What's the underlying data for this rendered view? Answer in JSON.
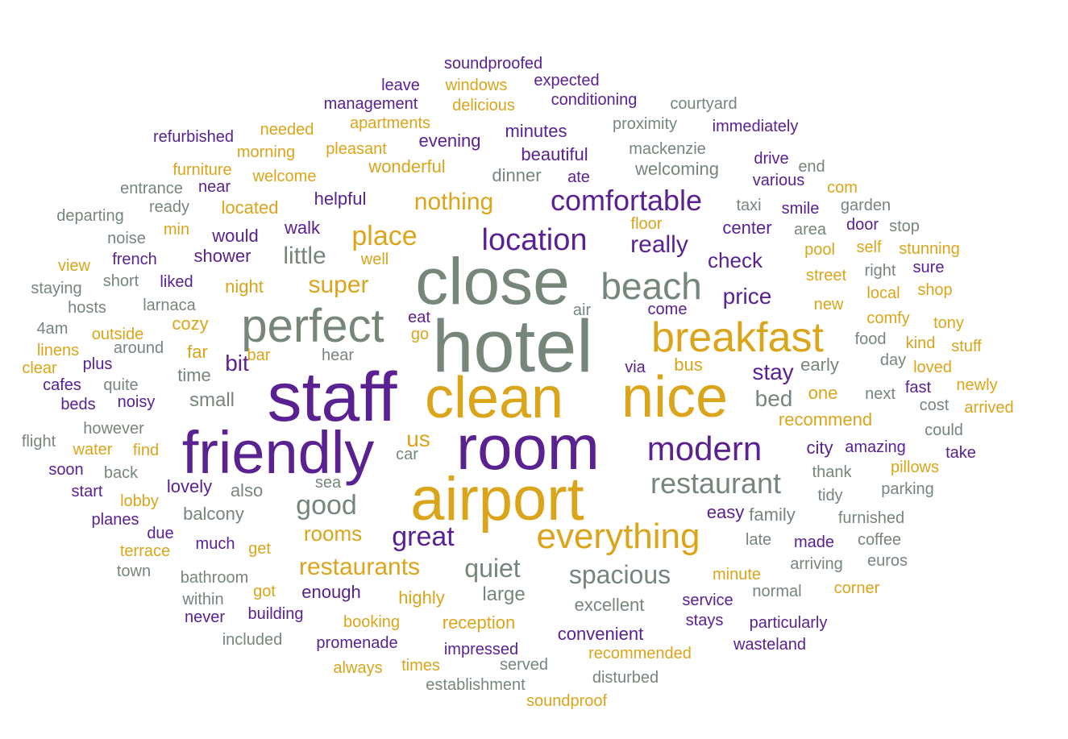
{
  "palette": {
    "purple": "#5a2191",
    "gold": "#dba51b",
    "sage": "#77867a"
  },
  "words": [
    {
      "text": "hotel",
      "weight": 100,
      "color": "sage"
    },
    {
      "text": "staff",
      "weight": 92,
      "color": "purple"
    },
    {
      "text": "close",
      "weight": 86,
      "color": "sage"
    },
    {
      "text": "clean",
      "weight": 78,
      "color": "gold"
    },
    {
      "text": "nice",
      "weight": 74,
      "color": "gold"
    },
    {
      "text": "room",
      "weight": 78,
      "color": "purple"
    },
    {
      "text": "airport",
      "weight": 80,
      "color": "gold"
    },
    {
      "text": "friendly",
      "weight": 74,
      "color": "purple"
    },
    {
      "text": "perfect",
      "weight": 58,
      "color": "sage"
    },
    {
      "text": "breakfast",
      "weight": 56,
      "color": "gold"
    },
    {
      "text": "beach",
      "weight": 48,
      "color": "sage"
    },
    {
      "text": "everything",
      "weight": 52,
      "color": "gold"
    },
    {
      "text": "modern",
      "weight": 48,
      "color": "purple"
    },
    {
      "text": "location",
      "weight": 42,
      "color": "purple"
    },
    {
      "text": "comfortable",
      "weight": 40,
      "color": "purple"
    },
    {
      "text": "restaurant",
      "weight": 40,
      "color": "sage"
    },
    {
      "text": "great",
      "weight": 38,
      "color": "purple"
    },
    {
      "text": "good",
      "weight": 38,
      "color": "sage"
    },
    {
      "text": "spacious",
      "weight": 36,
      "color": "sage"
    },
    {
      "text": "quiet",
      "weight": 36,
      "color": "sage"
    },
    {
      "text": "place",
      "weight": 36,
      "color": "gold"
    },
    {
      "text": "nothing",
      "weight": 34,
      "color": "gold"
    },
    {
      "text": "really",
      "weight": 34,
      "color": "purple"
    },
    {
      "text": "super",
      "weight": 34,
      "color": "gold"
    },
    {
      "text": "restaurants",
      "weight": 32,
      "color": "gold"
    },
    {
      "text": "rooms",
      "weight": 30,
      "color": "gold"
    },
    {
      "text": "little",
      "weight": 30,
      "color": "sage"
    },
    {
      "text": "price",
      "weight": 30,
      "color": "purple"
    },
    {
      "text": "check",
      "weight": 30,
      "color": "purple"
    },
    {
      "text": "stay",
      "weight": 30,
      "color": "purple"
    },
    {
      "text": "bed",
      "weight": 30,
      "color": "sage"
    },
    {
      "text": "bit",
      "weight": 30,
      "color": "purple"
    },
    {
      "text": "us",
      "weight": 30,
      "color": "gold"
    },
    {
      "text": "small",
      "weight": 28,
      "color": "sage"
    },
    {
      "text": "large",
      "weight": 28,
      "color": "sage"
    },
    {
      "text": "easy",
      "weight": 28,
      "color": "purple"
    },
    {
      "text": "bus",
      "weight": 28,
      "color": "gold"
    },
    {
      "text": "also",
      "weight": 28,
      "color": "sage"
    },
    {
      "text": "night",
      "weight": 26,
      "color": "gold"
    },
    {
      "text": "helpful",
      "weight": 26,
      "color": "purple"
    },
    {
      "text": "walk",
      "weight": 26,
      "color": "purple"
    },
    {
      "text": "wonderful",
      "weight": 26,
      "color": "gold"
    },
    {
      "text": "dinner",
      "weight": 26,
      "color": "sage"
    },
    {
      "text": "beautiful",
      "weight": 26,
      "color": "purple"
    },
    {
      "text": "recommend",
      "weight": 26,
      "color": "gold"
    },
    {
      "text": "highly",
      "weight": 26,
      "color": "gold"
    },
    {
      "text": "excellent",
      "weight": 26,
      "color": "sage"
    },
    {
      "text": "convenient",
      "weight": 24,
      "color": "purple"
    },
    {
      "text": "reception",
      "weight": 24,
      "color": "gold"
    },
    {
      "text": "enough",
      "weight": 24,
      "color": "purple"
    },
    {
      "text": "balcony",
      "weight": 24,
      "color": "sage"
    },
    {
      "text": "lovely",
      "weight": 24,
      "color": "purple"
    },
    {
      "text": "time",
      "weight": 24,
      "color": "sage"
    },
    {
      "text": "far",
      "weight": 24,
      "color": "gold"
    },
    {
      "text": "cozy",
      "weight": 22,
      "color": "gold"
    },
    {
      "text": "minute",
      "weight": 22,
      "color": "gold"
    },
    {
      "text": "service",
      "weight": 22,
      "color": "purple"
    },
    {
      "text": "impressed",
      "weight": 22,
      "color": "purple"
    },
    {
      "text": "recommended",
      "weight": 22,
      "color": "gold"
    },
    {
      "text": "welcoming",
      "weight": 22,
      "color": "sage"
    },
    {
      "text": "minutes",
      "weight": 22,
      "color": "purple"
    },
    {
      "text": "evening",
      "weight": 22,
      "color": "purple"
    },
    {
      "text": "center",
      "weight": 22,
      "color": "purple"
    },
    {
      "text": "shower",
      "weight": 22,
      "color": "purple"
    },
    {
      "text": "would",
      "weight": 22,
      "color": "purple"
    },
    {
      "text": "located",
      "weight": 22,
      "color": "gold"
    },
    {
      "text": "family",
      "weight": 22,
      "color": "sage"
    },
    {
      "text": "early",
      "weight": 22,
      "color": "sage"
    },
    {
      "text": "one",
      "weight": 22,
      "color": "gold"
    },
    {
      "text": "city",
      "weight": 22,
      "color": "purple"
    },
    {
      "text": "amazing",
      "weight": 22,
      "color": "purple"
    },
    {
      "text": "thank",
      "weight": 22,
      "color": "sage"
    },
    {
      "text": "street",
      "weight": 22,
      "color": "gold"
    },
    {
      "text": "pool",
      "weight": 22,
      "color": "gold"
    },
    {
      "text": "new",
      "weight": 22,
      "color": "gold"
    },
    {
      "text": "come",
      "weight": 20,
      "color": "purple"
    },
    {
      "text": "hear",
      "weight": 20,
      "color": "sage"
    },
    {
      "text": "around",
      "weight": 20,
      "color": "sage"
    },
    {
      "text": "noisy",
      "weight": 20,
      "color": "purple"
    },
    {
      "text": "however",
      "weight": 20,
      "color": "sage"
    },
    {
      "text": "much",
      "weight": 20,
      "color": "purple"
    },
    {
      "text": "get",
      "weight": 20,
      "color": "gold"
    },
    {
      "text": "bathroom",
      "weight": 20,
      "color": "sage"
    },
    {
      "text": "building",
      "weight": 20,
      "color": "purple"
    },
    {
      "text": "booking",
      "weight": 20,
      "color": "gold"
    },
    {
      "text": "promenade",
      "weight": 20,
      "color": "purple"
    },
    {
      "text": "stays",
      "weight": 20,
      "color": "purple"
    },
    {
      "text": "particularly",
      "weight": 20,
      "color": "purple"
    },
    {
      "text": "wasteland",
      "weight": 20,
      "color": "purple"
    },
    {
      "text": "served",
      "weight": 20,
      "color": "sage"
    },
    {
      "text": "times",
      "weight": 20,
      "color": "gold"
    },
    {
      "text": "always",
      "weight": 20,
      "color": "gold"
    },
    {
      "text": "establishment",
      "weight": 20,
      "color": "sage"
    },
    {
      "text": "disturbed",
      "weight": 20,
      "color": "sage"
    },
    {
      "text": "soundproof",
      "weight": 20,
      "color": "gold"
    },
    {
      "text": "made",
      "weight": 20,
      "color": "purple"
    },
    {
      "text": "late",
      "weight": 20,
      "color": "sage"
    },
    {
      "text": "arriving",
      "weight": 20,
      "color": "sage"
    },
    {
      "text": "normal",
      "weight": 20,
      "color": "sage"
    },
    {
      "text": "corner",
      "weight": 20,
      "color": "gold"
    },
    {
      "text": "coffee",
      "weight": 20,
      "color": "sage"
    },
    {
      "text": "euros",
      "weight": 20,
      "color": "sage"
    },
    {
      "text": "furnished",
      "weight": 20,
      "color": "sage"
    },
    {
      "text": "parking",
      "weight": 20,
      "color": "sage"
    },
    {
      "text": "tidy",
      "weight": 20,
      "color": "sage"
    },
    {
      "text": "pillows",
      "weight": 20,
      "color": "gold"
    },
    {
      "text": "take",
      "weight": 20,
      "color": "purple"
    },
    {
      "text": "could",
      "weight": 20,
      "color": "sage"
    },
    {
      "text": "cost",
      "weight": 20,
      "color": "sage"
    },
    {
      "text": "arrived",
      "weight": 20,
      "color": "gold"
    },
    {
      "text": "next",
      "weight": 20,
      "color": "sage"
    },
    {
      "text": "fast",
      "weight": 20,
      "color": "purple"
    },
    {
      "text": "newly",
      "weight": 20,
      "color": "gold"
    },
    {
      "text": "loved",
      "weight": 20,
      "color": "gold"
    },
    {
      "text": "day",
      "weight": 20,
      "color": "sage"
    },
    {
      "text": "food",
      "weight": 20,
      "color": "sage"
    },
    {
      "text": "kind",
      "weight": 20,
      "color": "gold"
    },
    {
      "text": "stuff",
      "weight": 20,
      "color": "gold"
    },
    {
      "text": "tony",
      "weight": 20,
      "color": "gold"
    },
    {
      "text": "comfy",
      "weight": 20,
      "color": "gold"
    },
    {
      "text": "local",
      "weight": 20,
      "color": "gold"
    },
    {
      "text": "shop",
      "weight": 20,
      "color": "gold"
    },
    {
      "text": "right",
      "weight": 20,
      "color": "sage"
    },
    {
      "text": "sure",
      "weight": 20,
      "color": "purple"
    },
    {
      "text": "self",
      "weight": 20,
      "color": "gold"
    },
    {
      "text": "stunning",
      "weight": 20,
      "color": "gold"
    },
    {
      "text": "door",
      "weight": 20,
      "color": "purple"
    },
    {
      "text": "stop",
      "weight": 20,
      "color": "sage"
    },
    {
      "text": "area",
      "weight": 20,
      "color": "sage"
    },
    {
      "text": "floor",
      "weight": 20,
      "color": "gold"
    },
    {
      "text": "taxi",
      "weight": 20,
      "color": "sage"
    },
    {
      "text": "smile",
      "weight": 20,
      "color": "purple"
    },
    {
      "text": "garden",
      "weight": 20,
      "color": "sage"
    },
    {
      "text": "com",
      "weight": 20,
      "color": "gold"
    },
    {
      "text": "various",
      "weight": 20,
      "color": "purple"
    },
    {
      "text": "drive",
      "weight": 20,
      "color": "purple"
    },
    {
      "text": "end",
      "weight": 20,
      "color": "sage"
    },
    {
      "text": "mackenzie",
      "weight": 20,
      "color": "sage"
    },
    {
      "text": "proximity",
      "weight": 20,
      "color": "sage"
    },
    {
      "text": "immediately",
      "weight": 20,
      "color": "purple"
    },
    {
      "text": "courtyard",
      "weight": 20,
      "color": "sage"
    },
    {
      "text": "conditioning",
      "weight": 20,
      "color": "purple"
    },
    {
      "text": "expected",
      "weight": 20,
      "color": "purple"
    },
    {
      "text": "soundproofed",
      "weight": 20,
      "color": "purple"
    },
    {
      "text": "leave",
      "weight": 20,
      "color": "purple"
    },
    {
      "text": "windows",
      "weight": 20,
      "color": "gold"
    },
    {
      "text": "management",
      "weight": 20,
      "color": "purple"
    },
    {
      "text": "delicious",
      "weight": 20,
      "color": "gold"
    },
    {
      "text": "apartments",
      "weight": 20,
      "color": "gold"
    },
    {
      "text": "refurbished",
      "weight": 20,
      "color": "purple"
    },
    {
      "text": "needed",
      "weight": 20,
      "color": "gold"
    },
    {
      "text": "morning",
      "weight": 20,
      "color": "gold"
    },
    {
      "text": "pleasant",
      "weight": 20,
      "color": "gold"
    },
    {
      "text": "furniture",
      "weight": 20,
      "color": "gold"
    },
    {
      "text": "welcome",
      "weight": 20,
      "color": "gold"
    },
    {
      "text": "ate",
      "weight": 20,
      "color": "purple"
    },
    {
      "text": "entrance",
      "weight": 20,
      "color": "sage"
    },
    {
      "text": "near",
      "weight": 20,
      "color": "purple"
    },
    {
      "text": "ready",
      "weight": 20,
      "color": "sage"
    },
    {
      "text": "departing",
      "weight": 20,
      "color": "sage"
    },
    {
      "text": "min",
      "weight": 20,
      "color": "gold"
    },
    {
      "text": "noise",
      "weight": 20,
      "color": "sage"
    },
    {
      "text": "view",
      "weight": 20,
      "color": "gold"
    },
    {
      "text": "french",
      "weight": 20,
      "color": "purple"
    },
    {
      "text": "well",
      "weight": 20,
      "color": "gold"
    },
    {
      "text": "staying",
      "weight": 20,
      "color": "sage"
    },
    {
      "text": "short",
      "weight": 20,
      "color": "sage"
    },
    {
      "text": "liked",
      "weight": 20,
      "color": "purple"
    },
    {
      "text": "hosts",
      "weight": 20,
      "color": "sage"
    },
    {
      "text": "larnaca",
      "weight": 20,
      "color": "sage"
    },
    {
      "text": "air",
      "weight": 20,
      "color": "sage"
    },
    {
      "text": "eat",
      "weight": 20,
      "color": "purple"
    },
    {
      "text": "go",
      "weight": 20,
      "color": "gold"
    },
    {
      "text": "4am",
      "weight": 20,
      "color": "sage"
    },
    {
      "text": "outside",
      "weight": 20,
      "color": "gold"
    },
    {
      "text": "linens",
      "weight": 20,
      "color": "gold"
    },
    {
      "text": "bar",
      "weight": 20,
      "color": "gold"
    },
    {
      "text": "clear",
      "weight": 20,
      "color": "gold"
    },
    {
      "text": "plus",
      "weight": 20,
      "color": "purple"
    },
    {
      "text": "quite",
      "weight": 20,
      "color": "sage"
    },
    {
      "text": "cafes",
      "weight": 20,
      "color": "purple"
    },
    {
      "text": "beds",
      "weight": 20,
      "color": "purple"
    },
    {
      "text": "via",
      "weight": 20,
      "color": "purple"
    },
    {
      "text": "flight",
      "weight": 20,
      "color": "sage"
    },
    {
      "text": "water",
      "weight": 20,
      "color": "gold"
    },
    {
      "text": "find",
      "weight": 20,
      "color": "gold"
    },
    {
      "text": "car",
      "weight": 20,
      "color": "sage"
    },
    {
      "text": "soon",
      "weight": 20,
      "color": "purple"
    },
    {
      "text": "back",
      "weight": 20,
      "color": "sage"
    },
    {
      "text": "sea",
      "weight": 20,
      "color": "sage"
    },
    {
      "text": "start",
      "weight": 20,
      "color": "purple"
    },
    {
      "text": "lobby",
      "weight": 20,
      "color": "gold"
    },
    {
      "text": "planes",
      "weight": 20,
      "color": "purple"
    },
    {
      "text": "due",
      "weight": 20,
      "color": "purple"
    },
    {
      "text": "terrace",
      "weight": 20,
      "color": "gold"
    },
    {
      "text": "town",
      "weight": 20,
      "color": "sage"
    },
    {
      "text": "got",
      "weight": 20,
      "color": "gold"
    },
    {
      "text": "within",
      "weight": 20,
      "color": "sage"
    },
    {
      "text": "never",
      "weight": 20,
      "color": "purple"
    },
    {
      "text": "included",
      "weight": 20,
      "color": "sage"
    }
  ]
}
